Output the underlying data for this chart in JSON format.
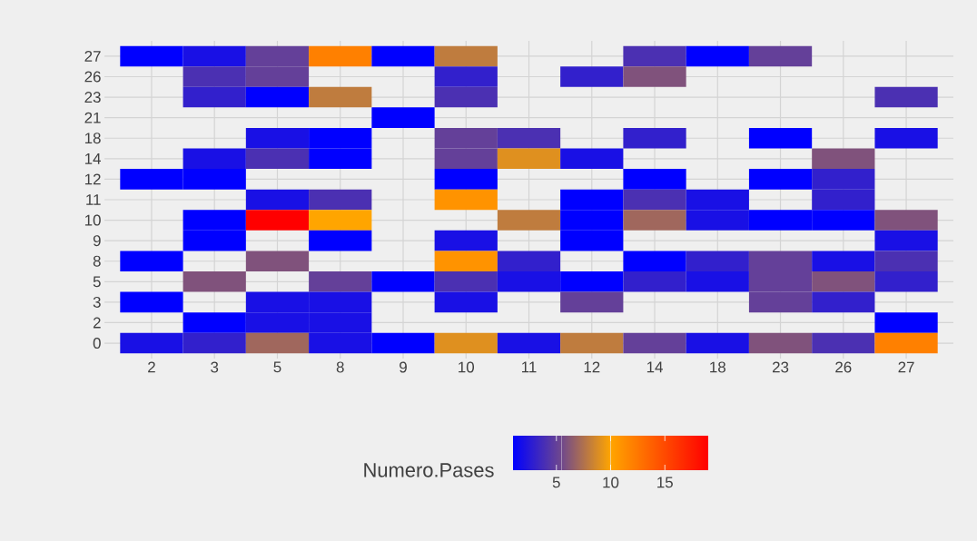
{
  "chart_data": {
    "type": "heatmap",
    "clabel": "Numero.Pases",
    "grid": true,
    "categories": [
      "2",
      "3",
      "5",
      "8",
      "9",
      "10",
      "11",
      "12",
      "14",
      "18",
      "23",
      "26",
      "27"
    ],
    "y_categories": [
      "27",
      "26",
      "23",
      "21",
      "18",
      "14",
      "12",
      "11",
      "10",
      "9",
      "8",
      "5",
      "3",
      "2",
      "0"
    ],
    "cells": [
      [
        1,
        2,
        5,
        12,
        1,
        8,
        null,
        null,
        4,
        1,
        5,
        null,
        null
      ],
      [
        null,
        4,
        5,
        null,
        null,
        3,
        null,
        3,
        6,
        null,
        null,
        null,
        null
      ],
      [
        null,
        3,
        1,
        8,
        null,
        4,
        null,
        null,
        null,
        null,
        null,
        null,
        4
      ],
      [
        null,
        null,
        null,
        null,
        1,
        null,
        null,
        null,
        null,
        null,
        null,
        null,
        null
      ],
      [
        null,
        null,
        2,
        1,
        null,
        5,
        4,
        null,
        3,
        null,
        1,
        null,
        2
      ],
      [
        null,
        2,
        4,
        1,
        null,
        5,
        9,
        2,
        null,
        null,
        null,
        6,
        null
      ],
      [
        1,
        1,
        null,
        null,
        null,
        1,
        null,
        null,
        1,
        null,
        1,
        3,
        null
      ],
      [
        null,
        null,
        2,
        4,
        null,
        11,
        null,
        1,
        4,
        2,
        null,
        3,
        null
      ],
      [
        null,
        1,
        19,
        10,
        null,
        null,
        8,
        1,
        7,
        2,
        1,
        1,
        6
      ],
      [
        null,
        1,
        null,
        1,
        null,
        2,
        null,
        1,
        null,
        null,
        null,
        null,
        2
      ],
      [
        1,
        null,
        6,
        null,
        null,
        11,
        3,
        null,
        1,
        3,
        5,
        2,
        4
      ],
      [
        null,
        6,
        null,
        5,
        1,
        4,
        2,
        1,
        3,
        2,
        5,
        6,
        3
      ],
      [
        1,
        null,
        2,
        2,
        null,
        2,
        null,
        5,
        null,
        null,
        5,
        3,
        null
      ],
      [
        null,
        1,
        2,
        2,
        null,
        null,
        null,
        null,
        null,
        null,
        null,
        null,
        1
      ],
      [
        2,
        3,
        7,
        2,
        1,
        9,
        2,
        8,
        5,
        2,
        6,
        4,
        12
      ]
    ],
    "clim": [
      1,
      19
    ],
    "cticks": [
      5,
      10,
      15
    ]
  }
}
